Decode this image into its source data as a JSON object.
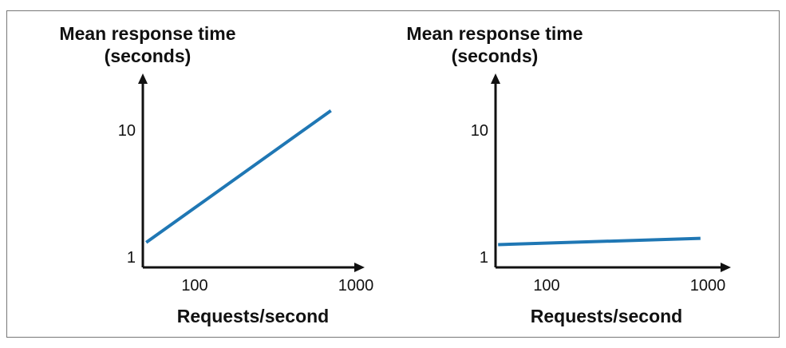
{
  "colors": {
    "line": "#1f77b4",
    "axis": "#111111",
    "frame": "#777777",
    "text": "#111111"
  },
  "chart_data": [
    {
      "type": "line",
      "title": [
        "Mean response time",
        "(seconds)"
      ],
      "xlabel": "Requests/second",
      "ylabel": "",
      "x_scale": "log",
      "y_scale": "log",
      "xlim": [
        50,
        1000
      ],
      "ylim": [
        1,
        20
      ],
      "x_ticks": [
        100,
        1000
      ],
      "y_ticks": [
        1,
        10
      ],
      "grid": false,
      "series": [
        {
          "x": [
            50,
            700
          ],
          "values": [
            1.3,
            14
          ]
        }
      ]
    },
    {
      "type": "line",
      "title": [
        "Mean response time",
        "(seconds)"
      ],
      "xlabel": "Requests/second",
      "ylabel": "",
      "x_scale": "log",
      "y_scale": "log",
      "xlim": [
        50,
        1000
      ],
      "ylim": [
        1,
        20
      ],
      "x_ticks": [
        100,
        1000
      ],
      "y_ticks": [
        1,
        10
      ],
      "grid": false,
      "series": [
        {
          "x": [
            50,
            900
          ],
          "values": [
            1.25,
            1.4
          ]
        }
      ]
    }
  ]
}
